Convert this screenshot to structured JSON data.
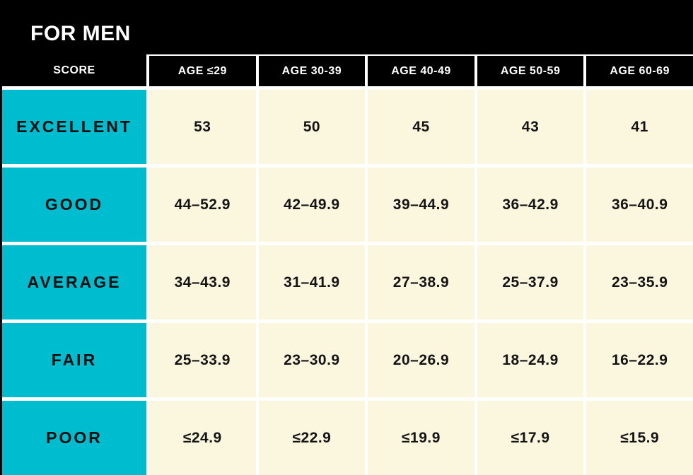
{
  "title": "FOR MEN",
  "colors": {
    "background": "#000000",
    "header_cell": "#000000",
    "header_text": "#FFFFFF",
    "label_cell_cyan": "#00BCCF",
    "value_cell_cream": "#FBF6DE",
    "grid_gap_white": "#FFFFFF",
    "body_text": "#141414"
  },
  "chart_data": {
    "type": "table",
    "title": "FOR MEN",
    "columns": [
      "SCORE",
      "AGE ≤29",
      "AGE 30-39",
      "AGE 40-49",
      "AGE 50-59",
      "AGE 60-69"
    ],
    "rows": [
      {
        "label": "EXCELLENT",
        "values": [
          "53",
          "50",
          "45",
          "43",
          "41"
        ]
      },
      {
        "label": "GOOD",
        "values": [
          "44–52.9",
          "42–49.9",
          "39–44.9",
          "36–42.9",
          "36–40.9"
        ]
      },
      {
        "label": "AVERAGE",
        "values": [
          "34–43.9",
          "31–41.9",
          "27–38.9",
          "25–37.9",
          "23–35.9"
        ]
      },
      {
        "label": "FAIR",
        "values": [
          "25–33.9",
          "23–30.9",
          "20–26.9",
          "18–24.9",
          "16–22.9"
        ]
      },
      {
        "label": "POOR",
        "values": [
          "≤24.9",
          "≤22.9",
          "≤19.9",
          "≤17.9",
          "≤15.9"
        ]
      }
    ]
  }
}
